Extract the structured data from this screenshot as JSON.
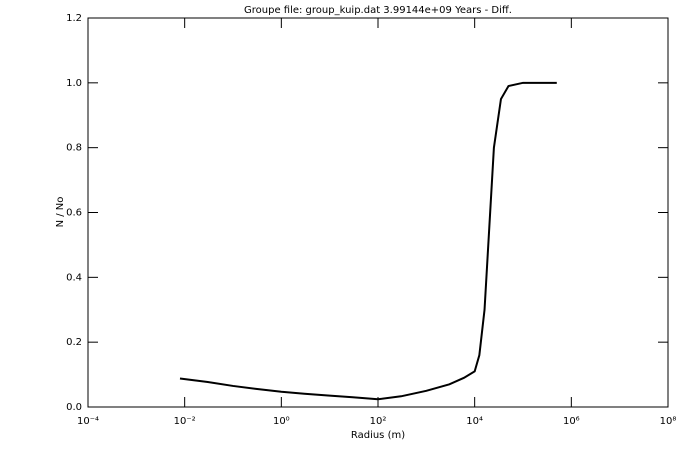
{
  "chart_data": {
    "type": "line",
    "title": "Groupe file: group_kuip.dat  3.99144e+09 Years - Diff.",
    "xlabel": "Radius (m)",
    "ylabel": "N / No",
    "xscale": "log",
    "x": [
      0.008,
      0.03,
      0.1,
      0.3,
      1,
      3,
      10,
      30,
      100,
      300,
      1000,
      3000,
      6000,
      10000,
      12500,
      16000,
      20000,
      25000,
      35000,
      50000,
      100000,
      500000
    ],
    "series": [
      {
        "color": "#000000",
        "values": [
          0.088,
          0.077,
          0.065,
          0.056,
          0.047,
          0.041,
          0.035,
          0.03,
          0.024,
          0.033,
          0.05,
          0.07,
          0.09,
          0.11,
          0.16,
          0.3,
          0.55,
          0.8,
          0.95,
          0.99,
          1.0,
          1.0
        ]
      }
    ],
    "xlim": [
      0.0001,
      100000000
    ],
    "xticks": [
      {
        "value": 0.0001,
        "label": "10⁻⁴"
      },
      {
        "value": 0.01,
        "label": "10⁻²"
      },
      {
        "value": 1,
        "label": "10⁰"
      },
      {
        "value": 100,
        "label": "10²"
      },
      {
        "value": 10000,
        "label": "10⁴"
      },
      {
        "value": 1000000,
        "label": "10⁶"
      },
      {
        "value": 100000000,
        "label": "10⁸"
      }
    ],
    "ylim": [
      0,
      1.2
    ],
    "yticks": [
      {
        "value": 0,
        "label": "0.0"
      },
      0.2,
      0.4,
      0.6,
      0.8,
      {
        "value": 1,
        "label": "1.0"
      },
      1.2
    ]
  }
}
